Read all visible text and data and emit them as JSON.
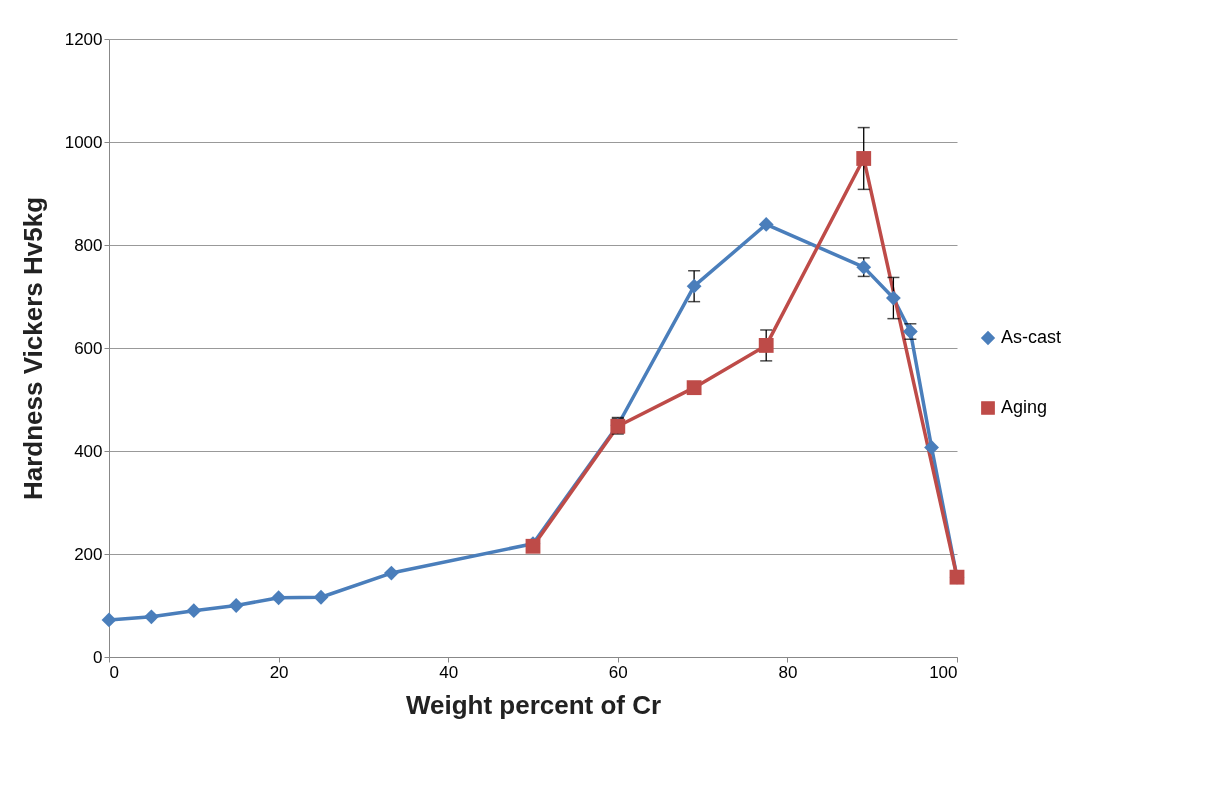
{
  "chart_data": {
    "type": "line",
    "xlabel": "Weight percent of Cr",
    "ylabel": "Hardness Vickers Hv5kg",
    "xlim": [
      0,
      100
    ],
    "xticks": [
      0,
      20,
      40,
      60,
      80,
      100
    ],
    "ylim": [
      0,
      1200
    ],
    "yticks": [
      0,
      200,
      400,
      600,
      800,
      1000,
      1200
    ],
    "grid": "y",
    "legend": "right",
    "series": [
      {
        "name": "As-cast",
        "color": "#4a7ebb",
        "marker": "diamond",
        "x": [
          0,
          5,
          10,
          15,
          20,
          25,
          33.3,
          50,
          60,
          69,
          77.5,
          89,
          92.5,
          94.5,
          97,
          100
        ],
        "values": [
          72,
          78,
          90,
          100,
          115,
          116,
          163,
          220,
          450,
          720,
          840,
          757,
          697,
          632,
          407,
          155
        ],
        "errors": [
          null,
          null,
          null,
          null,
          null,
          null,
          null,
          null,
          15,
          30,
          null,
          18,
          40,
          15,
          null,
          null
        ]
      },
      {
        "name": "Aging",
        "color": "#be4b48",
        "marker": "square",
        "x": [
          50,
          60,
          69,
          77.5,
          89,
          100
        ],
        "values": [
          215,
          448,
          523,
          605,
          968,
          155
        ],
        "errors": [
          null,
          15,
          null,
          30,
          60,
          null
        ]
      }
    ]
  }
}
